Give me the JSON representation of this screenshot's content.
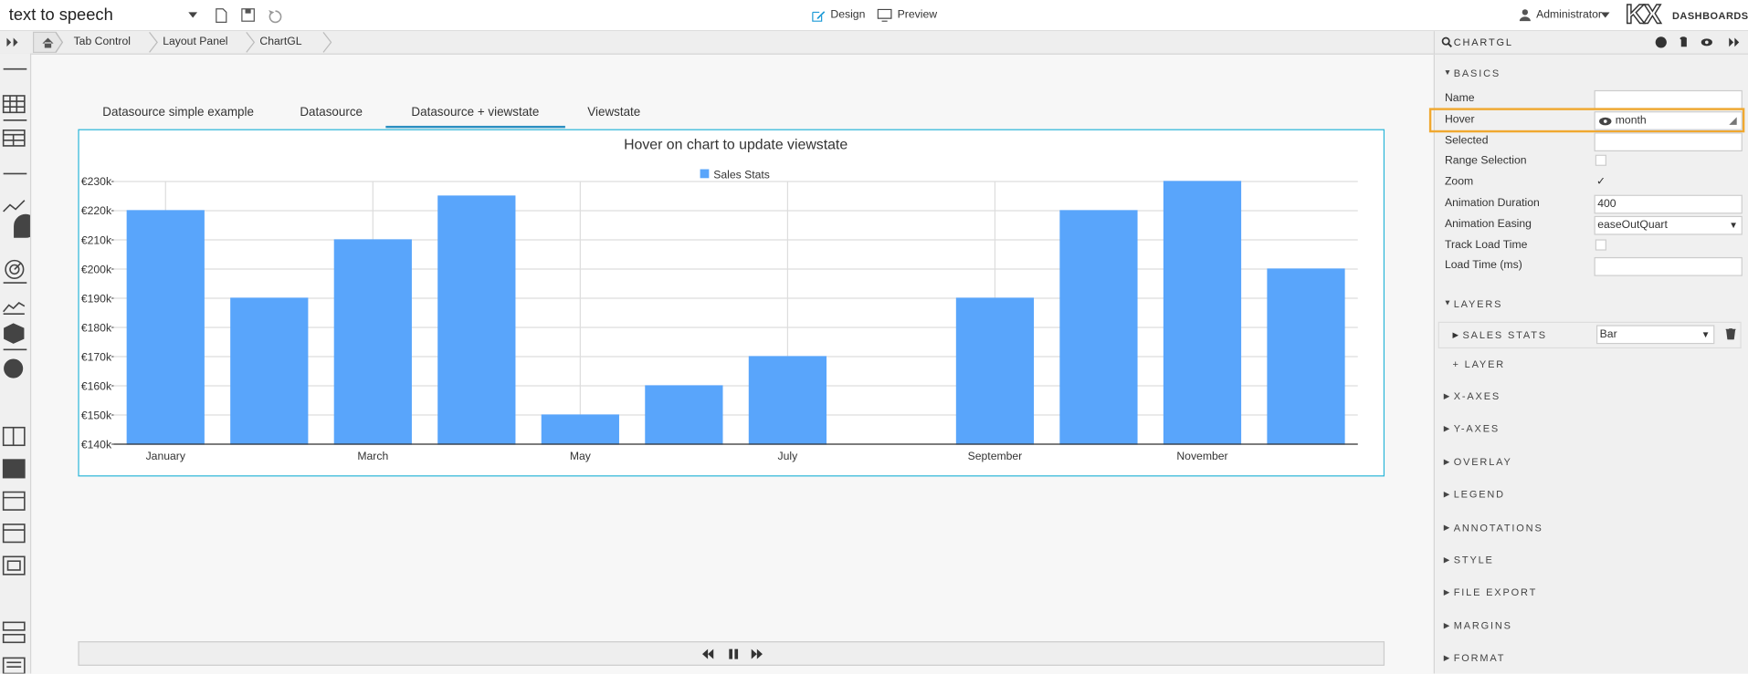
{
  "header": {
    "title": "text to speech",
    "modes": [
      "Design",
      "Preview"
    ],
    "active_mode": 0,
    "user": "Administrator",
    "logo": "KX",
    "logo_text": "DASHBOARDS"
  },
  "breadcrumbs": [
    "Tab Control",
    "Layout Panel",
    "ChartGL"
  ],
  "tabs": [
    "Datasource simple example",
    "Datasource",
    "Datasource + viewstate",
    "Viewstate"
  ],
  "active_tab": 2,
  "chart_data": {
    "type": "bar",
    "title": "Hover on chart to update viewstate",
    "categories": [
      "January",
      null,
      "March",
      null,
      "May",
      null,
      "July",
      null,
      "September",
      null,
      "November",
      null
    ],
    "series": [
      {
        "name": "Sales Stats",
        "color": "#59a5fb",
        "values": [
          220000,
          190000,
          210000,
          225000,
          150000,
          160000,
          170000,
          140000,
          190000,
          220000,
          230000,
          200000
        ]
      }
    ],
    "ylim": [
      140000,
      230000
    ],
    "yticks": [
      {
        "value": 140000,
        "label": "€140k"
      },
      {
        "value": 150000,
        "label": "€150k"
      },
      {
        "value": 160000,
        "label": "€160k"
      },
      {
        "value": 170000,
        "label": "€170k"
      },
      {
        "value": 180000,
        "label": "€180k"
      },
      {
        "value": 190000,
        "label": "€190k"
      },
      {
        "value": 200000,
        "label": "€200k"
      },
      {
        "value": 210000,
        "label": "€210k"
      },
      {
        "value": 220000,
        "label": "€220k"
      },
      {
        "value": 230000,
        "label": "€230k"
      }
    ],
    "grid": true,
    "x_grid": true,
    "legend": "top"
  },
  "panel": {
    "title": "CHARTGL",
    "basics": {
      "title": "BASICS",
      "properties": [
        {
          "label": "Name",
          "kind": "input"
        },
        {
          "label": "Hover",
          "kind": "input",
          "value": "month",
          "highlighted": true
        },
        {
          "label": "Selected",
          "kind": "input"
        },
        {
          "label": "Range Selection",
          "kind": "checkbox",
          "checked": false
        },
        {
          "label": "Zoom",
          "kind": "checkbox",
          "checked": true
        },
        {
          "label": "Animation Duration",
          "kind": "input",
          "value": "400"
        },
        {
          "label": "Animation Easing",
          "kind": "select",
          "value": "easeOutQuart"
        },
        {
          "label": "Track Load Time",
          "kind": "checkbox",
          "checked": false
        },
        {
          "label": "Load Time (ms)",
          "kind": "input"
        }
      ]
    },
    "layers": {
      "title": "LAYERS",
      "items": [
        {
          "name": "SALES STATS",
          "type": "Bar"
        }
      ],
      "add": "+ LAYER"
    },
    "sections": [
      "X-AXES",
      "Y-AXES",
      "OVERLAY",
      "LEGEND",
      "ANNOTATIONS",
      "STYLE",
      "FILE EXPORT",
      "MARGINS",
      "FORMAT"
    ]
  }
}
